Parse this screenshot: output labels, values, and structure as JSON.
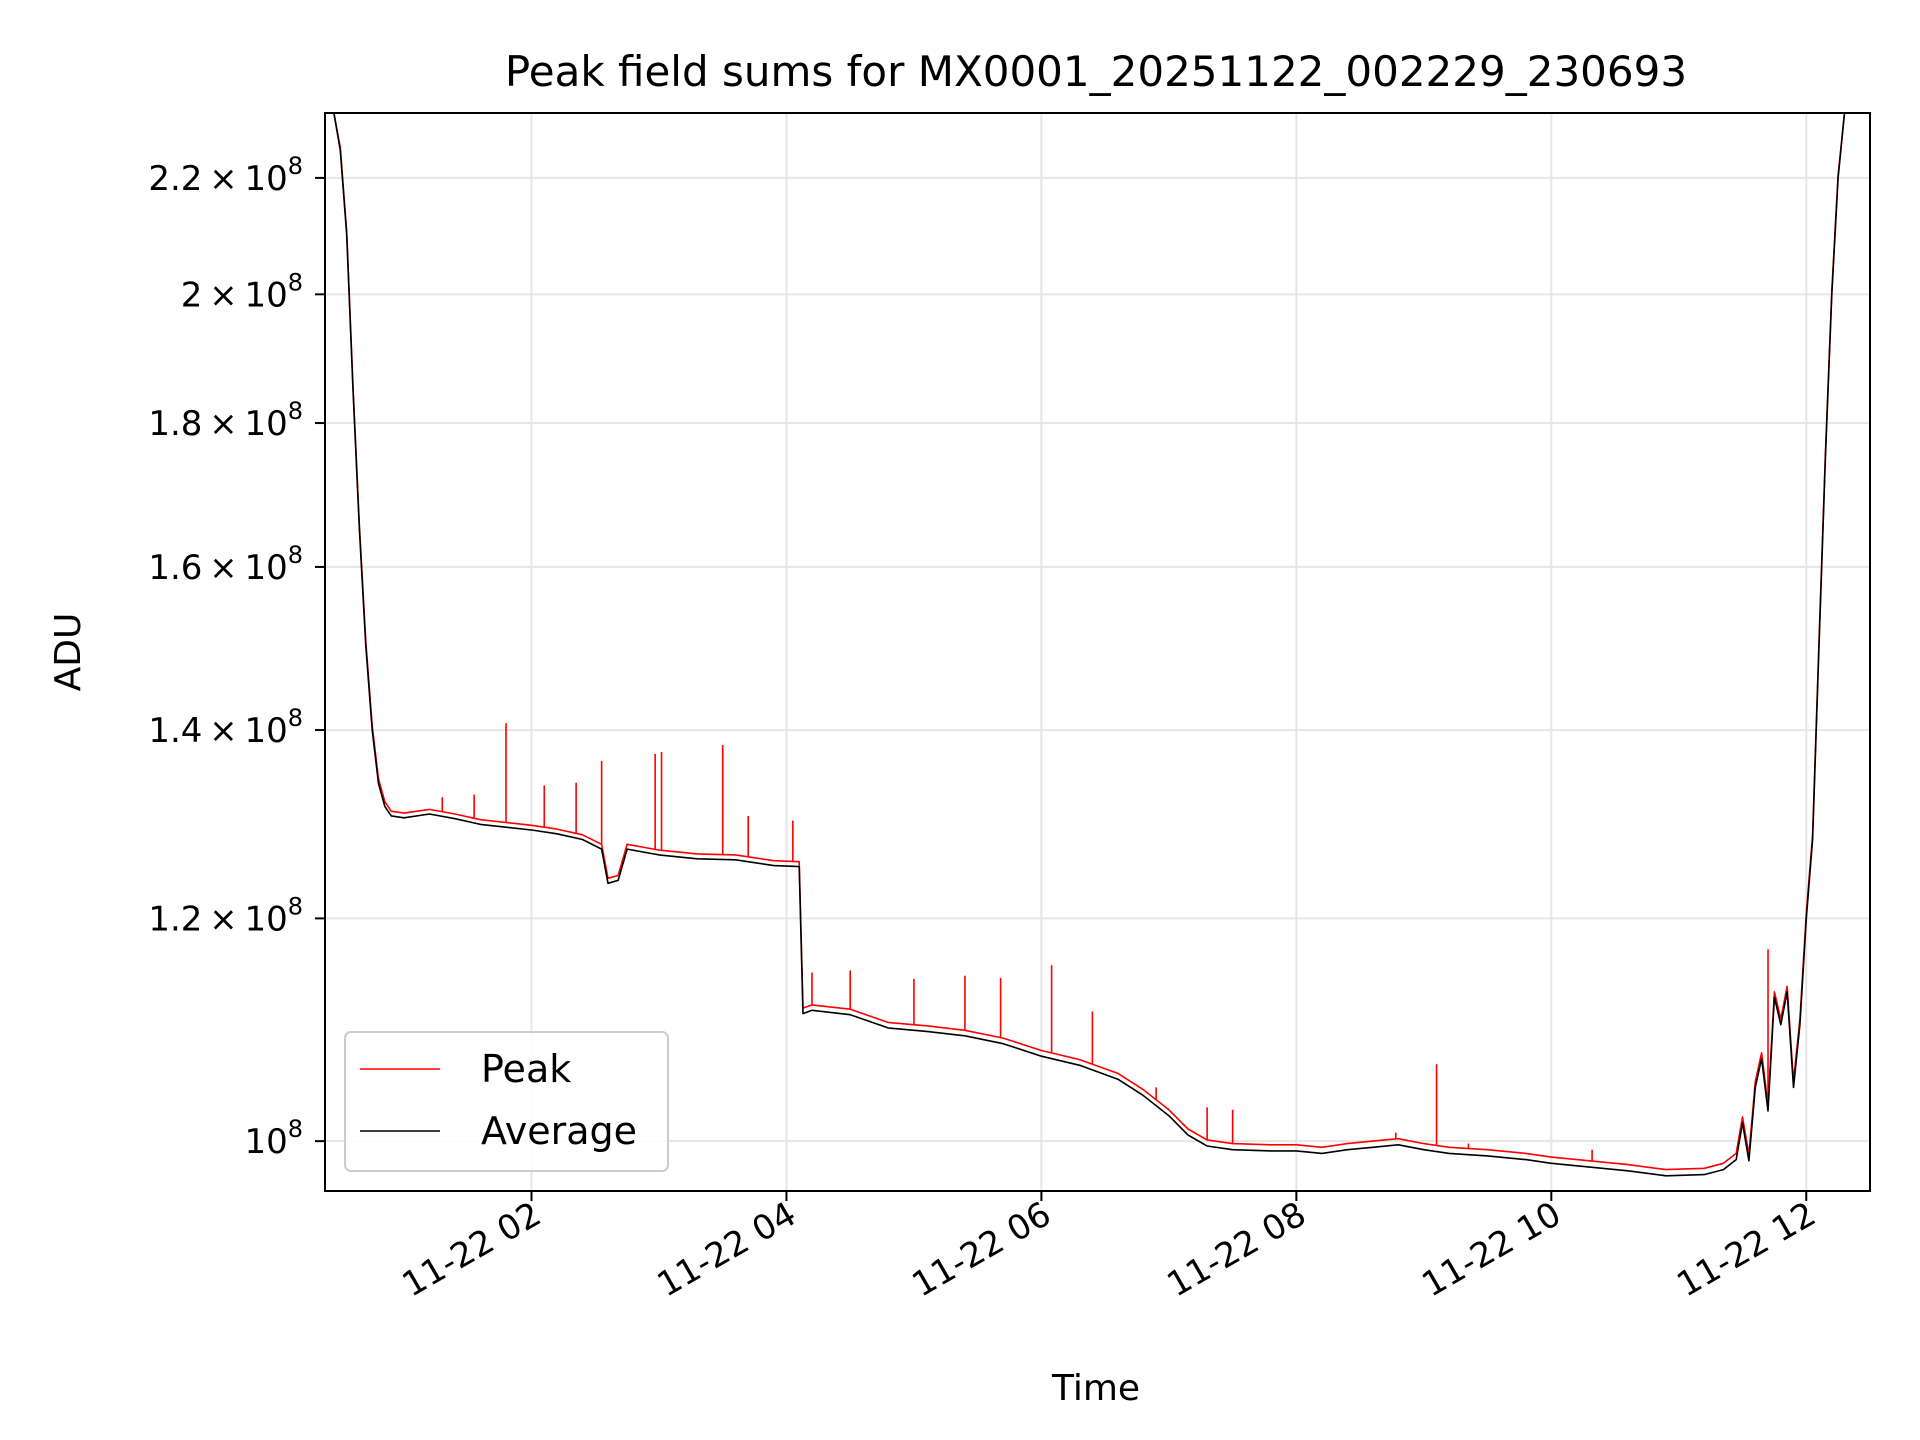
{
  "chart_data": {
    "type": "line",
    "title": "Peak field sums for MX0001_20251122_002229_230693",
    "xlabel": "Time",
    "ylabel": "ADU",
    "yscale": "log",
    "xlim_hours": [
      0.38,
      12.5
    ],
    "ylim": [
      96000000,
      232000000
    ],
    "grid": true,
    "legend_location": "lower-left",
    "x_ticks": [
      {
        "hours": 2,
        "label": "11-22 02"
      },
      {
        "hours": 4,
        "label": "11-22 04"
      },
      {
        "hours": 6,
        "label": "11-22 06"
      },
      {
        "hours": 8,
        "label": "11-22 08"
      },
      {
        "hours": 10,
        "label": "11-22 10"
      },
      {
        "hours": 12,
        "label": "11-22 12"
      }
    ],
    "y_ticks": [
      {
        "value": 100000000,
        "mantissa": "",
        "exp": "8"
      },
      {
        "value": 120000000,
        "mantissa": "1.2",
        "exp": "8"
      },
      {
        "value": 140000000,
        "mantissa": "1.4",
        "exp": "8"
      },
      {
        "value": 160000000,
        "mantissa": "1.6",
        "exp": "8"
      },
      {
        "value": 180000000,
        "mantissa": "1.8",
        "exp": "8"
      },
      {
        "value": 200000000,
        "mantissa": "2",
        "exp": "8"
      },
      {
        "value": 220000000,
        "mantissa": "2.2",
        "exp": "8"
      }
    ],
    "series": [
      {
        "name": "Average",
        "color": "#000000",
        "x_hours": [
          0.45,
          0.5,
          0.55,
          0.6,
          0.65,
          0.7,
          0.75,
          0.8,
          0.85,
          0.9,
          1.0,
          1.2,
          1.4,
          1.6,
          1.8,
          2.0,
          2.2,
          2.4,
          2.55,
          2.6,
          2.68,
          2.75,
          3.0,
          3.3,
          3.6,
          3.9,
          4.1,
          4.13,
          4.2,
          4.5,
          4.8,
          5.1,
          5.4,
          5.7,
          6.0,
          6.3,
          6.6,
          6.8,
          7.0,
          7.15,
          7.3,
          7.5,
          7.8,
          8.0,
          8.2,
          8.4,
          8.6,
          8.8,
          9.0,
          9.2,
          9.5,
          9.8,
          10.0,
          10.3,
          10.6,
          10.9,
          11.2,
          11.35,
          11.45,
          11.5,
          11.55,
          11.6,
          11.65,
          11.7,
          11.75,
          11.8,
          11.85,
          11.9,
          11.95,
          12.0,
          12.05,
          12.1,
          12.15,
          12.2,
          12.25,
          12.3,
          12.35
        ],
        "values": [
          232000000,
          225000000,
          210000000,
          185000000,
          165000000,
          150000000,
          140000000,
          134000000,
          131500000,
          130500000,
          130300000,
          130700000,
          130200000,
          129600000,
          129300000,
          129000000,
          128600000,
          128000000,
          127000000,
          123500000,
          123800000,
          127000000,
          126400000,
          126000000,
          125900000,
          125300000,
          125200000,
          111000000,
          111300000,
          110900000,
          109700000,
          109400000,
          109000000,
          108300000,
          107200000,
          106400000,
          105200000,
          103800000,
          102100000,
          100500000,
          99600000,
          99300000,
          99200000,
          99200000,
          99000000,
          99300000,
          99500000,
          99700000,
          99300000,
          99000000,
          98800000,
          98500000,
          98200000,
          97900000,
          97600000,
          97200000,
          97300000,
          97700000,
          98500000,
          101500000,
          98400000,
          104500000,
          107000000,
          102500000,
          112500000,
          110000000,
          113000000,
          104500000,
          110000000,
          120000000,
          128000000,
          150000000,
          175000000,
          200000000,
          220000000,
          232000000,
          232000000
        ]
      },
      {
        "name": "Peak",
        "color": "#ff0000",
        "x_hours": [
          0.45,
          0.5,
          0.55,
          0.6,
          0.65,
          0.7,
          0.75,
          0.8,
          0.85,
          0.9,
          1.0,
          1.2,
          1.4,
          1.6,
          1.8,
          2.0,
          2.2,
          2.4,
          2.55,
          2.6,
          2.68,
          2.75,
          3.0,
          3.3,
          3.6,
          3.9,
          4.1,
          4.13,
          4.2,
          4.5,
          4.8,
          5.1,
          5.4,
          5.7,
          6.0,
          6.3,
          6.6,
          6.8,
          7.0,
          7.15,
          7.3,
          7.5,
          7.8,
          8.0,
          8.2,
          8.4,
          8.6,
          8.8,
          9.0,
          9.2,
          9.5,
          9.8,
          10.0,
          10.3,
          10.6,
          10.9,
          11.2,
          11.35,
          11.45,
          11.5,
          11.55,
          11.6,
          11.65,
          11.7,
          11.75,
          11.8,
          11.85,
          11.9,
          11.95,
          12.0,
          12.05,
          12.1,
          12.15,
          12.2,
          12.25,
          12.3,
          12.35
        ],
        "values": [
          232000000,
          225500000,
          210500000,
          185500000,
          165500000,
          150500000,
          140500000,
          134500000,
          132000000,
          131000000,
          130800000,
          131200000,
          130700000,
          130100000,
          129800000,
          129500000,
          129100000,
          128500000,
          127500000,
          124000000,
          124300000,
          127500000,
          126900000,
          126500000,
          126400000,
          125800000,
          125700000,
          111500000,
          111800000,
          111400000,
          110200000,
          109900000,
          109500000,
          108800000,
          107700000,
          106900000,
          105700000,
          104300000,
          102600000,
          101000000,
          100100000,
          99800000,
          99700000,
          99700000,
          99500000,
          99800000,
          100000000,
          100200000,
          99800000,
          99500000,
          99300000,
          99000000,
          98700000,
          98400000,
          98100000,
          97700000,
          97800000,
          98200000,
          99000000,
          102000000,
          98900000,
          105000000,
          107500000,
          103000000,
          113000000,
          110500000,
          113500000,
          105000000,
          110500000,
          120500000,
          128500000,
          150500000,
          175500000,
          200500000,
          220500000,
          232000000,
          232000000
        ],
        "spikes": [
          {
            "hours": 1.3,
            "value": 132500000
          },
          {
            "hours": 1.55,
            "value": 132800000
          },
          {
            "hours": 1.8,
            "value": 140800000
          },
          {
            "hours": 2.1,
            "value": 133800000
          },
          {
            "hours": 2.35,
            "value": 134100000
          },
          {
            "hours": 2.55,
            "value": 136500000
          },
          {
            "hours": 2.97,
            "value": 137300000
          },
          {
            "hours": 3.02,
            "value": 137500000
          },
          {
            "hours": 3.5,
            "value": 138300000
          },
          {
            "hours": 3.7,
            "value": 130500000
          },
          {
            "hours": 4.05,
            "value": 130000000
          },
          {
            "hours": 4.2,
            "value": 114800000
          },
          {
            "hours": 4.5,
            "value": 115000000
          },
          {
            "hours": 5.0,
            "value": 114200000
          },
          {
            "hours": 5.4,
            "value": 114500000
          },
          {
            "hours": 5.68,
            "value": 114300000
          },
          {
            "hours": 6.08,
            "value": 115500000
          },
          {
            "hours": 6.4,
            "value": 111200000
          },
          {
            "hours": 6.9,
            "value": 104500000
          },
          {
            "hours": 7.3,
            "value": 102800000
          },
          {
            "hours": 7.5,
            "value": 102600000
          },
          {
            "hours": 8.78,
            "value": 100700000
          },
          {
            "hours": 9.1,
            "value": 106500000
          },
          {
            "hours": 9.35,
            "value": 99800000
          },
          {
            "hours": 10.32,
            "value": 99300000
          },
          {
            "hours": 11.7,
            "value": 117000000
          }
        ]
      }
    ]
  }
}
